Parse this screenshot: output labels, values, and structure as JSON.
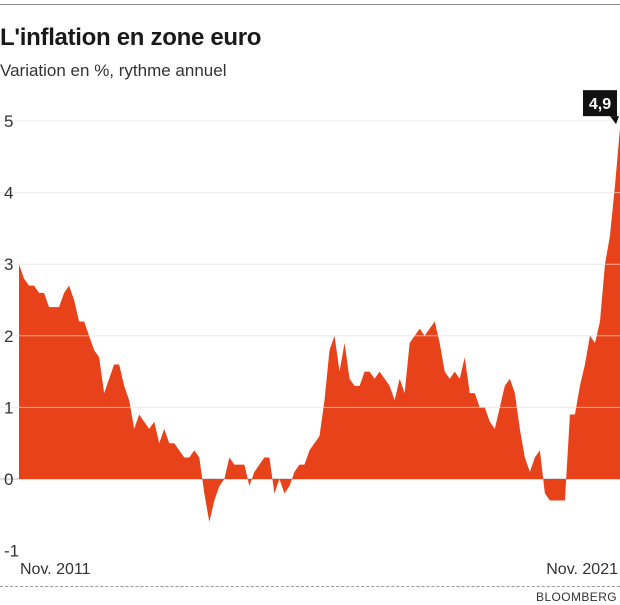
{
  "chart_data": {
    "type": "area",
    "title": "L'inflation en zone euro",
    "subtitle": "Variation en %, rythme annuel",
    "source": "BLOOMBERG",
    "x_start": "2011-11",
    "x_end": "2021-11",
    "x_labels": [
      "Nov. 2011",
      "Nov. 2021"
    ],
    "ylim": [
      -1,
      5
    ],
    "y_ticks": [
      -1,
      0,
      1,
      2,
      3,
      4,
      5
    ],
    "grid": true,
    "color": "#e8421a",
    "callout": {
      "label": "4,9",
      "date": "2021-11",
      "value": 4.9
    },
    "series": [
      {
        "x": [
          "2011-11",
          "2011-12",
          "2012-01",
          "2012-02",
          "2012-03",
          "2012-04",
          "2012-05",
          "2012-06",
          "2012-07",
          "2012-08",
          "2012-09",
          "2012-10",
          "2012-11",
          "2012-12",
          "2013-01",
          "2013-02",
          "2013-03",
          "2013-04",
          "2013-05",
          "2013-06",
          "2013-07",
          "2013-08",
          "2013-09",
          "2013-10",
          "2013-11",
          "2013-12",
          "2014-01",
          "2014-02",
          "2014-03",
          "2014-04",
          "2014-05",
          "2014-06",
          "2014-07",
          "2014-08",
          "2014-09",
          "2014-10",
          "2014-11",
          "2014-12",
          "2015-01",
          "2015-02",
          "2015-03",
          "2015-04",
          "2015-05",
          "2015-06",
          "2015-07",
          "2015-08",
          "2015-09",
          "2015-10",
          "2015-11",
          "2015-12",
          "2016-01",
          "2016-02",
          "2016-03",
          "2016-04",
          "2016-05",
          "2016-06",
          "2016-07",
          "2016-08",
          "2016-09",
          "2016-10",
          "2016-11",
          "2016-12",
          "2017-01",
          "2017-02",
          "2017-03",
          "2017-04",
          "2017-05",
          "2017-06",
          "2017-07",
          "2017-08",
          "2017-09",
          "2017-10",
          "2017-11",
          "2017-12",
          "2018-01",
          "2018-02",
          "2018-03",
          "2018-04",
          "2018-05",
          "2018-06",
          "2018-07",
          "2018-08",
          "2018-09",
          "2018-10",
          "2018-11",
          "2018-12",
          "2019-01",
          "2019-02",
          "2019-03",
          "2019-04",
          "2019-05",
          "2019-06",
          "2019-07",
          "2019-08",
          "2019-09",
          "2019-10",
          "2019-11",
          "2019-12",
          "2020-01",
          "2020-02",
          "2020-03",
          "2020-04",
          "2020-05",
          "2020-06",
          "2020-07",
          "2020-08",
          "2020-09",
          "2020-10",
          "2020-11",
          "2020-12",
          "2021-01",
          "2021-02",
          "2021-03",
          "2021-04",
          "2021-05",
          "2021-06",
          "2021-07",
          "2021-08",
          "2021-09",
          "2021-10",
          "2021-11"
        ],
        "values": [
          3.0,
          2.8,
          2.7,
          2.7,
          2.6,
          2.6,
          2.4,
          2.4,
          2.4,
          2.6,
          2.7,
          2.5,
          2.2,
          2.2,
          2.0,
          1.8,
          1.7,
          1.2,
          1.4,
          1.6,
          1.6,
          1.3,
          1.1,
          0.7,
          0.9,
          0.8,
          0.7,
          0.8,
          0.5,
          0.7,
          0.5,
          0.5,
          0.4,
          0.3,
          0.3,
          0.4,
          0.3,
          -0.2,
          -0.6,
          -0.3,
          -0.1,
          0.0,
          0.3,
          0.2,
          0.2,
          0.2,
          -0.1,
          0.1,
          0.2,
          0.3,
          0.3,
          -0.2,
          0.0,
          -0.2,
          -0.1,
          0.1,
          0.2,
          0.2,
          0.4,
          0.5,
          0.6,
          1.1,
          1.8,
          2.0,
          1.5,
          1.9,
          1.4,
          1.3,
          1.3,
          1.5,
          1.5,
          1.4,
          1.5,
          1.4,
          1.3,
          1.1,
          1.4,
          1.2,
          1.9,
          2.0,
          2.1,
          2.0,
          2.1,
          2.2,
          1.9,
          1.5,
          1.4,
          1.5,
          1.4,
          1.7,
          1.2,
          1.2,
          1.0,
          1.0,
          0.8,
          0.7,
          1.0,
          1.3,
          1.4,
          1.2,
          0.7,
          0.3,
          0.1,
          0.3,
          0.4,
          -0.2,
          -0.3,
          -0.3,
          -0.3,
          -0.3,
          0.9,
          0.9,
          1.3,
          1.6,
          2.0,
          1.9,
          2.2,
          3.0,
          3.4,
          4.1,
          4.9
        ]
      }
    ]
  }
}
